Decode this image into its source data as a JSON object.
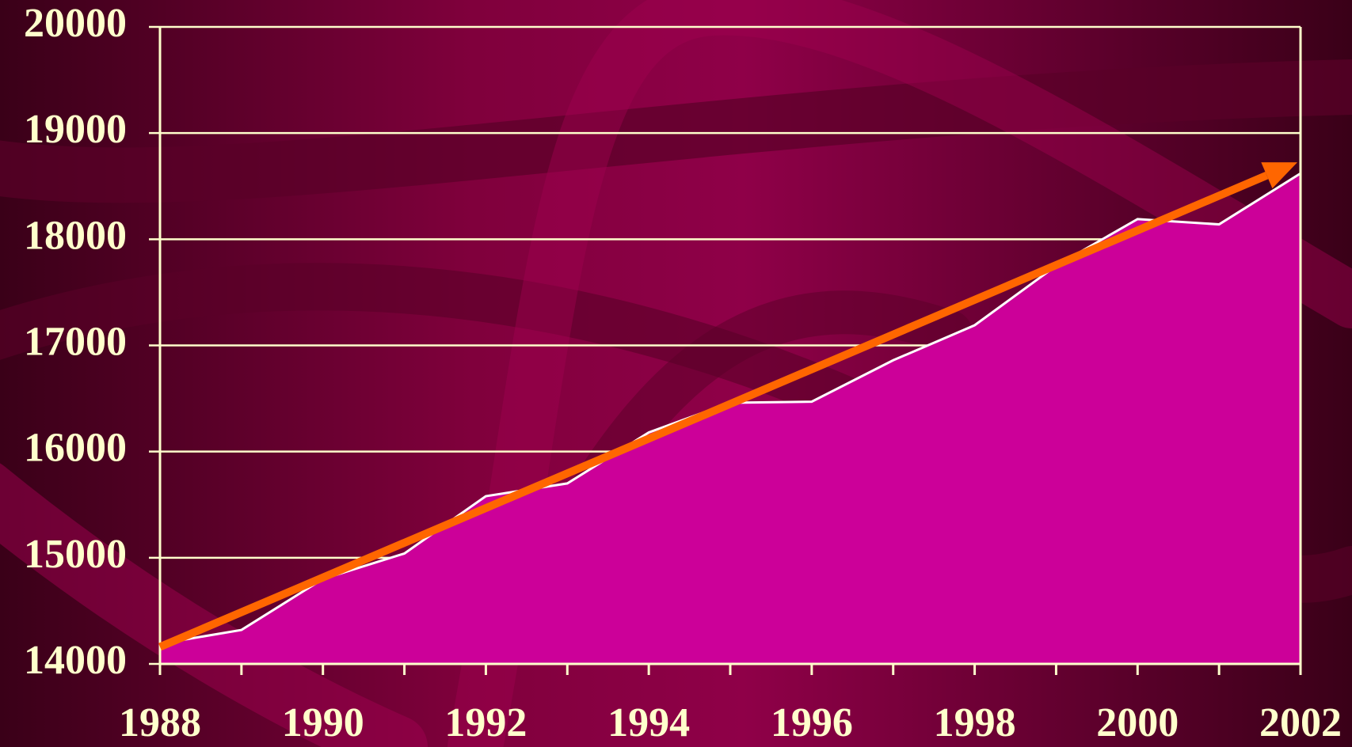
{
  "chart_data": {
    "type": "area",
    "x": [
      1988,
      1989,
      1990,
      1991,
      1992,
      1993,
      1994,
      1995,
      1996,
      1997,
      1998,
      1999,
      2000,
      2001,
      2002
    ],
    "series": [
      {
        "color": "#cc0099",
        "line_color": "#ffffff",
        "values": [
          14190,
          14320,
          14800,
          15040,
          15580,
          15700,
          16180,
          16460,
          16470,
          16860,
          17190,
          17750,
          18190,
          18140,
          18620
        ]
      }
    ],
    "xlim": [
      1988,
      2002
    ],
    "xticks": [
      1988,
      1990,
      1992,
      1994,
      1996,
      1998,
      2000,
      2002
    ],
    "ylim": [
      14000,
      20000
    ],
    "yticks": [
      14000,
      15000,
      16000,
      17000,
      18000,
      19000,
      20000
    ],
    "grid": true,
    "grid_color": "#ffffcc",
    "trend_arrow_color": "#ff6600"
  }
}
